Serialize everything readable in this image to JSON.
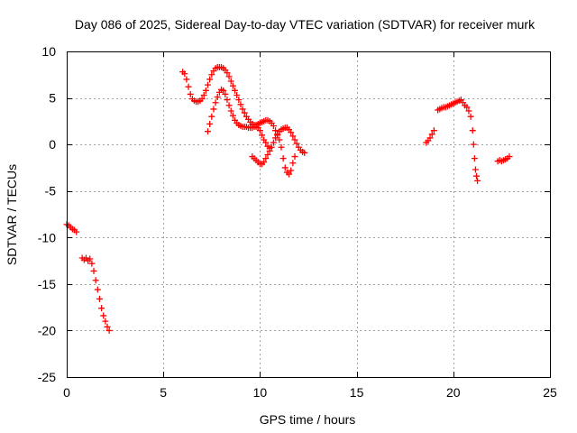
{
  "chart_data": {
    "type": "scatter",
    "title": "Day 086 of 2025, Sidereal Day-to-day VTEC variation (SDTVAR) for receiver murk",
    "xlabel": "GPS time / hours",
    "ylabel": "SDTVAR / TECUs",
    "xlim": [
      0,
      25
    ],
    "ylim": [
      -25,
      10
    ],
    "xticks": [
      0,
      5,
      10,
      15,
      20,
      25
    ],
    "yticks": [
      10,
      5,
      0,
      -5,
      -10,
      -15,
      -20,
      -25
    ],
    "grid": true,
    "marker": "+",
    "color": "#ff0000",
    "series": [
      {
        "name": "SDTVAR",
        "segments": [
          [
            [
              0.0,
              -8.6
            ],
            [
              0.1,
              -8.7
            ],
            [
              0.2,
              -8.9
            ],
            [
              0.3,
              -9.1
            ],
            [
              0.4,
              -9.2
            ],
            [
              0.5,
              -9.4
            ]
          ],
          [
            [
              0.8,
              -12.2
            ],
            [
              0.9,
              -12.4
            ],
            [
              1.0,
              -12.2
            ],
            [
              1.1,
              -12.5
            ],
            [
              1.2,
              -12.3
            ],
            [
              1.3,
              -12.8
            ],
            [
              1.4,
              -13.6
            ],
            [
              1.5,
              -14.6
            ],
            [
              1.6,
              -15.6
            ],
            [
              1.7,
              -16.6
            ],
            [
              1.8,
              -17.6
            ],
            [
              1.9,
              -18.4
            ],
            [
              2.0,
              -19.0
            ],
            [
              2.1,
              -19.6
            ],
            [
              2.2,
              -20.0
            ]
          ],
          [
            [
              6.0,
              7.8
            ],
            [
              6.1,
              7.6
            ],
            [
              6.2,
              7.0
            ],
            [
              6.3,
              6.2
            ],
            [
              6.4,
              5.4
            ],
            [
              6.5,
              4.9
            ],
            [
              6.6,
              4.7
            ],
            [
              6.7,
              4.6
            ],
            [
              6.8,
              4.6
            ],
            [
              6.9,
              4.7
            ],
            [
              7.0,
              4.9
            ],
            [
              7.1,
              5.3
            ],
            [
              7.2,
              5.8
            ],
            [
              7.3,
              6.4
            ],
            [
              7.4,
              7.0
            ],
            [
              7.5,
              7.5
            ],
            [
              7.6,
              7.9
            ],
            [
              7.7,
              8.2
            ],
            [
              7.8,
              8.3
            ],
            [
              7.9,
              8.3
            ],
            [
              8.0,
              8.3
            ],
            [
              8.1,
              8.2
            ],
            [
              8.2,
              8.0
            ],
            [
              8.3,
              7.7
            ],
            [
              8.4,
              7.3
            ],
            [
              8.5,
              6.8
            ],
            [
              8.6,
              6.3
            ],
            [
              8.7,
              5.8
            ],
            [
              8.8,
              5.3
            ],
            [
              8.9,
              4.8
            ],
            [
              9.0,
              4.3
            ],
            [
              9.1,
              3.8
            ],
            [
              9.2,
              3.4
            ],
            [
              9.3,
              3.0
            ],
            [
              9.4,
              2.7
            ],
            [
              9.5,
              2.4
            ],
            [
              9.6,
              2.2
            ],
            [
              9.7,
              2.1
            ],
            [
              9.8,
              2.1
            ],
            [
              9.9,
              2.2
            ],
            [
              10.0,
              2.3
            ],
            [
              10.1,
              2.4
            ],
            [
              10.2,
              2.5
            ],
            [
              10.3,
              2.6
            ],
            [
              10.4,
              2.6
            ],
            [
              10.5,
              2.5
            ],
            [
              10.6,
              2.3
            ],
            [
              10.7,
              2.0
            ],
            [
              10.8,
              1.5
            ],
            [
              10.9,
              1.0
            ],
            [
              11.0,
              0.5
            ],
            [
              11.1,
              -0.3
            ],
            [
              11.2,
              -1.5
            ],
            [
              11.3,
              -2.5
            ],
            [
              11.4,
              -3.0
            ],
            [
              11.5,
              -3.2
            ],
            [
              11.6,
              -2.8
            ],
            [
              11.7,
              -2.0
            ],
            [
              11.8,
              -1.3
            ]
          ],
          [
            [
              7.3,
              1.4
            ],
            [
              7.4,
              2.2
            ],
            [
              7.5,
              3.0
            ],
            [
              7.6,
              3.8
            ],
            [
              7.7,
              4.5
            ],
            [
              7.8,
              5.1
            ],
            [
              7.9,
              5.6
            ],
            [
              8.0,
              5.9
            ],
            [
              8.1,
              5.8
            ],
            [
              8.2,
              5.4
            ],
            [
              8.3,
              4.8
            ],
            [
              8.4,
              4.2
            ],
            [
              8.5,
              3.6
            ],
            [
              8.6,
              3.1
            ],
            [
              8.7,
              2.6
            ],
            [
              8.8,
              2.3
            ],
            [
              8.9,
              2.1
            ],
            [
              9.0,
              2.0
            ],
            [
              9.1,
              1.9
            ],
            [
              9.2,
              1.9
            ],
            [
              9.3,
              1.9
            ],
            [
              9.4,
              1.8
            ],
            [
              9.5,
              1.8
            ],
            [
              9.6,
              1.8
            ],
            [
              9.7,
              1.9
            ],
            [
              9.8,
              1.9
            ],
            [
              9.9,
              1.8
            ],
            [
              10.0,
              1.5
            ],
            [
              10.1,
              1.0
            ],
            [
              10.2,
              0.5
            ],
            [
              10.3,
              0.2
            ],
            [
              10.4,
              -0.2
            ],
            [
              10.5,
              -0.4
            ]
          ],
          [
            [
              9.6,
              -1.3
            ],
            [
              9.7,
              -1.5
            ],
            [
              9.8,
              -1.7
            ],
            [
              9.9,
              -1.9
            ],
            [
              10.0,
              -2.1
            ],
            [
              10.1,
              -2.1
            ],
            [
              10.2,
              -1.9
            ],
            [
              10.3,
              -1.5
            ],
            [
              10.4,
              -1.1
            ],
            [
              10.5,
              -0.7
            ],
            [
              10.6,
              -0.3
            ],
            [
              10.7,
              0.2
            ],
            [
              10.8,
              0.7
            ],
            [
              10.9,
              1.1
            ],
            [
              11.0,
              1.4
            ],
            [
              11.1,
              1.6
            ],
            [
              11.2,
              1.7
            ],
            [
              11.3,
              1.8
            ],
            [
              11.4,
              1.8
            ],
            [
              11.5,
              1.6
            ],
            [
              11.6,
              1.3
            ],
            [
              11.7,
              0.9
            ],
            [
              11.8,
              0.5
            ],
            [
              11.9,
              0.1
            ],
            [
              12.0,
              -0.3
            ],
            [
              12.1,
              -0.6
            ],
            [
              12.2,
              -0.8
            ],
            [
              12.3,
              -0.9
            ]
          ],
          [
            [
              18.6,
              0.2
            ],
            [
              18.7,
              0.4
            ],
            [
              18.8,
              0.7
            ],
            [
              18.9,
              1.1
            ],
            [
              19.0,
              1.5
            ]
          ],
          [
            [
              19.2,
              3.7
            ],
            [
              19.3,
              3.8
            ],
            [
              19.4,
              3.9
            ],
            [
              19.5,
              4.0
            ],
            [
              19.6,
              4.0
            ],
            [
              19.7,
              4.1
            ],
            [
              19.8,
              4.2
            ],
            [
              19.9,
              4.3
            ],
            [
              20.0,
              4.4
            ],
            [
              20.1,
              4.5
            ],
            [
              20.2,
              4.6
            ],
            [
              20.3,
              4.7
            ],
            [
              20.4,
              4.8
            ],
            [
              20.5,
              4.5
            ],
            [
              20.6,
              4.2
            ],
            [
              20.7,
              4.0
            ],
            [
              20.8,
              3.6
            ],
            [
              20.9,
              3.0
            ],
            [
              21.0,
              1.5
            ],
            [
              21.05,
              0.0
            ],
            [
              21.1,
              -1.5
            ],
            [
              21.15,
              -2.7
            ],
            [
              21.2,
              -3.4
            ],
            [
              21.25,
              -3.9
            ]
          ],
          [
            [
              22.3,
              -1.8
            ],
            [
              22.4,
              -1.7
            ],
            [
              22.5,
              -1.8
            ],
            [
              22.6,
              -1.7
            ],
            [
              22.7,
              -1.6
            ],
            [
              22.8,
              -1.5
            ],
            [
              22.9,
              -1.3
            ]
          ]
        ]
      }
    ]
  }
}
